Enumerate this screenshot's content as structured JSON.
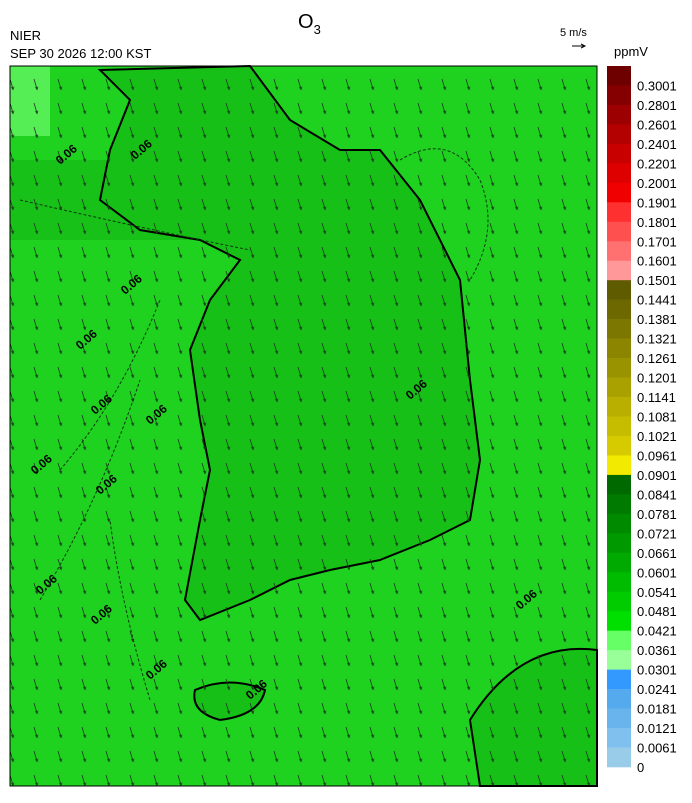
{
  "header": {
    "title": "O",
    "title_subscript": "3",
    "agency": "NIER",
    "datetime": "SEP 30 2026 12:00 KST",
    "vector_scale": "5 m/s"
  },
  "colorbar": {
    "unit": "ppmV",
    "labels": [
      "0.3001",
      "0.2801",
      "0.2601",
      "0.2401",
      "0.2201",
      "0.2001",
      "0.1901",
      "0.1801",
      "0.1701",
      "0.1601",
      "0.1501",
      "0.1441",
      "0.1381",
      "0.1321",
      "0.1261",
      "0.1201",
      "0.1141",
      "0.1081",
      "0.1021",
      "0.0961",
      "0.0901",
      "0.0841",
      "0.0781",
      "0.0721",
      "0.0661",
      "0.0601",
      "0.0541",
      "0.0481",
      "0.0421",
      "0.0361",
      "0.0301",
      "0.0241",
      "0.0181",
      "0.0121",
      "0.0061",
      "0"
    ],
    "colors": [
      "#6e0000",
      "#850000",
      "#9c0000",
      "#b30000",
      "#c80000",
      "#de0000",
      "#f00000",
      "#ff3030",
      "#ff5050",
      "#ff7070",
      "#ff9898",
      "#5e5b00",
      "#6d6900",
      "#7c7700",
      "#8b8500",
      "#9a9300",
      "#a9a100",
      "#b8af00",
      "#c7bd00",
      "#d6cb00",
      "#f2ea00",
      "#006a00",
      "#007a00",
      "#008a00",
      "#009a00",
      "#00aa00",
      "#00bc00",
      "#00cc00",
      "#00e000",
      "#66ff66",
      "#99ff99",
      "#3399ff",
      "#55aaee",
      "#6ab4ee",
      "#80c0ee",
      "#98cce8"
    ]
  },
  "map": {
    "contour_labels": [
      "0.06",
      "0.06",
      "0.06",
      "0.06",
      "0.06",
      "0.06",
      "0.06",
      "0.06",
      "0.06",
      "0.06",
      "0.06",
      "0.06",
      "0.06",
      "0.06"
    ]
  }
}
